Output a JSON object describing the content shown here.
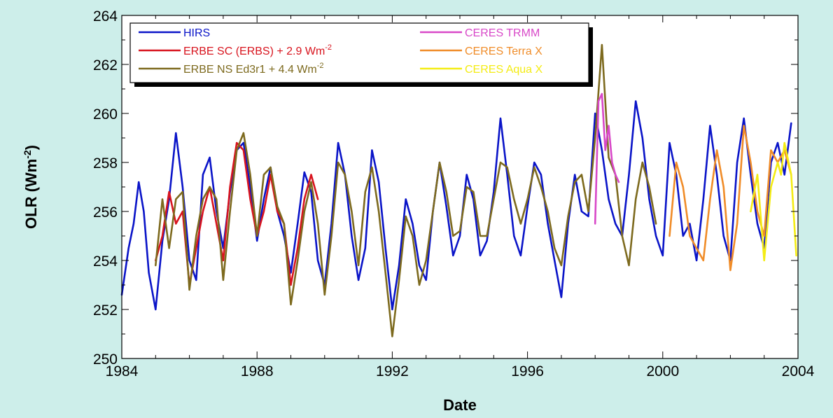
{
  "chart_data": {
    "type": "line",
    "title": "",
    "xlabel": "Date",
    "ylabel": "OLR (Wm",
    "ylabel_sup": "-2",
    "ylabel_close": ")",
    "xlim": [
      1984,
      2004
    ],
    "ylim": [
      250,
      264
    ],
    "xticks": [
      "1984",
      "1988",
      "1992",
      "1996",
      "2000",
      "2004"
    ],
    "yticks": [
      "250",
      "252",
      "254",
      "256",
      "258",
      "260",
      "262",
      "264"
    ],
    "grid": false,
    "legend_position": "top-left",
    "legend": [
      {
        "label": "HIRS",
        "sup": "",
        "color": "#0a14c8"
      },
      {
        "label": "ERBE SC (ERBS) + 2.9 Wm",
        "sup": "-2",
        "color": "#d8141e"
      },
      {
        "label": "ERBE NS Ed3r1 + 4.4 Wm",
        "sup": "-2",
        "color": "#7d6a1e"
      },
      {
        "label": "CERES TRMM",
        "sup": "",
        "color": "#d848c8"
      },
      {
        "label": "CERES Terra X",
        "sup": "",
        "color": "#f08c28"
      },
      {
        "label": "CERES Aqua X",
        "sup": "",
        "color": "#f4ec14"
      }
    ],
    "series": [
      {
        "name": "HIRS",
        "color": "#0a14c8",
        "x": [
          1984.0,
          1984.2,
          1984.35,
          1984.5,
          1984.65,
          1984.8,
          1985.0,
          1985.2,
          1985.4,
          1985.6,
          1985.8,
          1986.0,
          1986.2,
          1986.4,
          1986.6,
          1986.8,
          1987.0,
          1987.2,
          1987.4,
          1987.6,
          1987.8,
          1988.0,
          1988.2,
          1988.4,
          1988.6,
          1988.8,
          1989.0,
          1989.2,
          1989.4,
          1989.6,
          1989.8,
          1990.0,
          1990.2,
          1990.4,
          1990.6,
          1990.8,
          1991.0,
          1991.2,
          1991.4,
          1991.6,
          1991.8,
          1992.0,
          1992.2,
          1992.4,
          1992.6,
          1992.8,
          1993.0,
          1993.2,
          1993.4,
          1993.6,
          1993.8,
          1994.0,
          1994.2,
          1994.4,
          1994.6,
          1994.8,
          1995.0,
          1995.2,
          1995.4,
          1995.6,
          1995.8,
          1996.0,
          1996.2,
          1996.4,
          1996.6,
          1996.8,
          1997.0,
          1997.2,
          1997.4,
          1997.6,
          1997.8,
          1998.0,
          1998.2,
          1998.4,
          1998.6,
          1998.8,
          1999.0,
          1999.2,
          1999.4,
          1999.6,
          1999.8,
          2000.0,
          2000.2,
          2000.4,
          2000.6,
          2000.8,
          2001.0,
          2001.2,
          2001.4,
          2001.6,
          2001.8,
          2002.0,
          2002.2,
          2002.4,
          2002.6,
          2002.8,
          2003.0,
          2003.2,
          2003.4,
          2003.6,
          2003.8
        ],
        "values": [
          252.6,
          254.5,
          255.5,
          257.2,
          256.0,
          253.5,
          252.0,
          254.8,
          256.5,
          259.2,
          257.0,
          254.0,
          253.2,
          257.5,
          258.2,
          256.0,
          254.5,
          256.8,
          258.5,
          258.8,
          257.0,
          254.8,
          256.5,
          257.8,
          256.0,
          255.0,
          253.5,
          255.5,
          257.6,
          256.8,
          254.0,
          253.0,
          255.5,
          258.8,
          257.5,
          255.0,
          253.2,
          254.5,
          258.5,
          257.2,
          254.5,
          252.0,
          253.8,
          256.5,
          255.5,
          253.8,
          253.2,
          256.0,
          258.0,
          256.2,
          254.2,
          255.0,
          257.5,
          256.5,
          254.2,
          254.8,
          256.8,
          259.8,
          257.5,
          255.0,
          254.2,
          256.2,
          258.0,
          257.5,
          255.5,
          254.0,
          252.5,
          255.5,
          257.5,
          256.0,
          255.8,
          260.0,
          258.5,
          256.5,
          255.5,
          255.0,
          257.5,
          260.5,
          259.0,
          256.5,
          255.0,
          254.2,
          258.8,
          257.5,
          255.0,
          255.5,
          254.0,
          256.5,
          259.5,
          257.5,
          255.0,
          254.0,
          258.0,
          259.8,
          257.5,
          255.5,
          254.5,
          258.0,
          258.8,
          257.5,
          259.6
        ]
      },
      {
        "name": "ERBE SC (ERBS) + 2.9 Wm-2",
        "color": "#d8141e",
        "x": [
          1985.0,
          1985.2,
          1985.4,
          1985.6,
          1985.8,
          1986.0,
          1986.2,
          1986.4,
          1986.6,
          1986.8,
          1987.0,
          1987.2,
          1987.4,
          1987.6,
          1987.8,
          1988.0,
          1988.2,
          1988.4,
          1988.6,
          1988.8,
          1989.0,
          1989.2,
          1989.4,
          1989.6,
          1989.8
        ],
        "values": [
          254.0,
          255.0,
          256.8,
          255.5,
          256.0,
          253.0,
          254.5,
          256.0,
          257.0,
          255.5,
          254.0,
          257.0,
          258.8,
          258.5,
          256.5,
          255.0,
          256.0,
          257.5,
          256.0,
          255.5,
          253.0,
          254.5,
          256.5,
          257.5,
          256.5
        ]
      },
      {
        "name": "ERBE NS Ed3r1 + 4.4 Wm-2",
        "color": "#7d6a1e",
        "x": [
          1985.0,
          1985.2,
          1985.4,
          1985.6,
          1985.8,
          1986.0,
          1986.2,
          1986.4,
          1986.6,
          1986.8,
          1987.0,
          1987.2,
          1987.4,
          1987.6,
          1987.8,
          1988.0,
          1988.2,
          1988.4,
          1988.6,
          1988.8,
          1989.0,
          1989.2,
          1989.4,
          1989.6,
          1989.8,
          1990.0,
          1990.2,
          1990.4,
          1990.6,
          1990.8,
          1991.0,
          1991.2,
          1991.4,
          1991.6,
          1991.8,
          1992.0,
          1992.2,
          1992.4,
          1992.6,
          1992.8,
          1993.0,
          1993.2,
          1993.4,
          1993.6,
          1993.8,
          1994.0,
          1994.2,
          1994.4,
          1994.6,
          1994.8,
          1995.0,
          1995.2,
          1995.4,
          1995.6,
          1995.8,
          1996.0,
          1996.2,
          1996.4,
          1996.6,
          1996.8,
          1997.0,
          1997.2,
          1997.4,
          1997.6,
          1997.8,
          1998.0,
          1998.2,
          1998.4,
          1998.6,
          1998.8,
          1999.0,
          1999.2,
          1999.4,
          1999.6,
          1999.8
        ],
        "values": [
          253.8,
          256.5,
          254.5,
          256.5,
          256.8,
          252.8,
          255.0,
          256.5,
          257.0,
          256.5,
          253.2,
          256.0,
          258.5,
          259.2,
          257.5,
          255.0,
          257.5,
          257.8,
          256.2,
          255.5,
          252.2,
          254.0,
          256.0,
          257.2,
          255.5,
          252.6,
          255.0,
          258.0,
          257.5,
          256.0,
          253.8,
          256.8,
          257.8,
          256.0,
          253.5,
          250.9,
          253.2,
          255.8,
          255.0,
          253.0,
          254.0,
          256.0,
          258.0,
          256.8,
          255.0,
          255.2,
          257.0,
          256.8,
          255.0,
          255.0,
          256.5,
          258.0,
          257.8,
          256.5,
          255.5,
          256.5,
          257.8,
          257.0,
          256.0,
          254.5,
          253.8,
          255.8,
          257.2,
          257.5,
          256.0,
          259.0,
          262.8,
          258.2,
          257.5,
          255.0,
          253.8,
          256.5,
          258.0,
          257.0,
          255.5
        ]
      },
      {
        "name": "CERES TRMM",
        "color": "#d848c8",
        "x": [
          1998.0,
          1998.1,
          1998.2,
          1998.3,
          1998.4,
          1998.5,
          1998.6,
          1998.7
        ],
        "values": [
          255.5,
          260.5,
          260.8,
          258.5,
          259.5,
          258.0,
          257.5,
          257.2
        ]
      },
      {
        "name": "CERES Terra X",
        "color": "#f08c28",
        "x": [
          2000.2,
          2000.4,
          2000.6,
          2000.8,
          2001.0,
          2001.2,
          2001.4,
          2001.6,
          2001.8,
          2002.0,
          2002.2,
          2002.4,
          2002.6,
          2002.8,
          2003.0,
          2003.2,
          2003.4,
          2003.6,
          2003.8
        ],
        "values": [
          255.0,
          258.0,
          257.0,
          255.0,
          254.5,
          254.0,
          256.5,
          258.5,
          257.0,
          253.6,
          255.5,
          259.5,
          258.0,
          256.0,
          255.0,
          258.5,
          258.0,
          258.5,
          257.5
        ]
      },
      {
        "name": "CERES Aqua X",
        "color": "#f4ec14",
        "x": [
          2002.6,
          2002.8,
          2003.0,
          2003.2,
          2003.4,
          2003.5,
          2003.6,
          2003.8,
          2003.95
        ],
        "values": [
          256.0,
          257.5,
          254.0,
          257.0,
          258.0,
          257.5,
          258.8,
          257.5,
          254.2
        ]
      }
    ]
  }
}
